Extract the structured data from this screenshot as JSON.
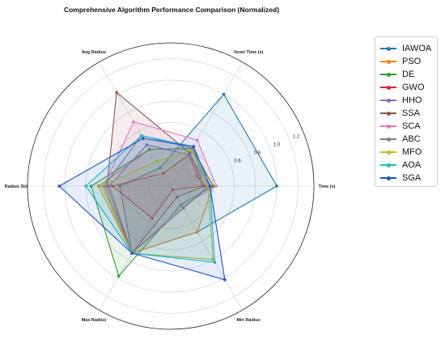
{
  "chart_data": {
    "type": "radar",
    "title": "Comprehensive Algorithm Performance Comparison (Normalized)",
    "axes": [
      "Time (s)",
      "Voxel Time (s)",
      "Avg Radius",
      "Radius Std",
      "Max Radius",
      "Min Radius"
    ],
    "radial_ticks": [
      "0.2",
      "0.6",
      "0.8",
      "1.0",
      "1.2"
    ],
    "rlim": [
      0,
      1.35
    ],
    "grid": true,
    "legend_position": "upper-right outside",
    "series": [
      {
        "name": "IAWOA",
        "color": "#1f77b4",
        "values": [
          1.0,
          1.0,
          0.2,
          0.48,
          0.73,
          0.5
        ]
      },
      {
        "name": "PSO",
        "color": "#ff7f0e",
        "values": [
          0.4,
          0.41,
          0.4,
          0.68,
          0.73,
          0.5
        ]
      },
      {
        "name": "DE",
        "color": "#2ca02c",
        "values": [
          0.4,
          0.41,
          0.4,
          0.75,
          0.98,
          0.2
        ]
      },
      {
        "name": "GWO",
        "color": "#d62728",
        "values": [
          0.3,
          0.34,
          0.14,
          0.55,
          0.35,
          0.04
        ]
      },
      {
        "name": "HHO",
        "color": "#9467bd",
        "values": [
          0.37,
          0.34,
          0.45,
          0.58,
          0.73,
          0.24
        ]
      },
      {
        "name": "SSA",
        "color": "#8c564b",
        "values": [
          0.32,
          0.36,
          1.02,
          0.6,
          0.73,
          0.12
        ]
      },
      {
        "name": "SCA",
        "color": "#e377c2",
        "values": [
          0.43,
          0.5,
          0.7,
          0.63,
          0.73,
          0.22
        ]
      },
      {
        "name": "ABC",
        "color": "#7f7f7f",
        "values": [
          0.35,
          0.41,
          0.55,
          0.63,
          0.73,
          0.24
        ]
      },
      {
        "name": "MFO",
        "color": "#bcbd22",
        "values": [
          0.35,
          0.39,
          0.27,
          0.65,
          0.73,
          0.8
        ]
      },
      {
        "name": "AOA",
        "color": "#17becf",
        "values": [
          0.37,
          0.43,
          0.55,
          0.8,
          0.73,
          0.83
        ]
      },
      {
        "name": "SGA",
        "color": "#1d4fd6",
        "values": [
          0.37,
          0.43,
          0.52,
          1.05,
          0.73,
          1.02
        ]
      }
    ]
  }
}
